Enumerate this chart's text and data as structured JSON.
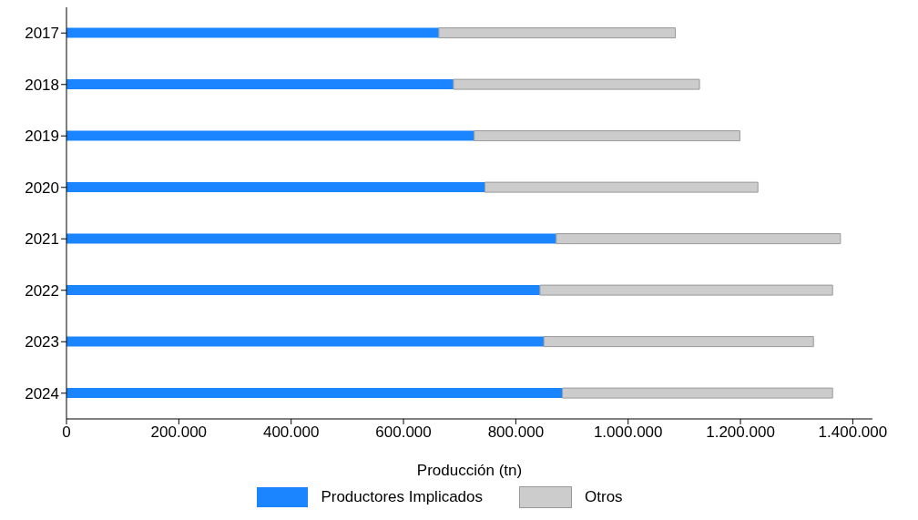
{
  "chart_data": {
    "type": "bar",
    "orientation": "horizontal",
    "stacked": true,
    "xlabel": "Producción (tn)",
    "categories": [
      "2017",
      "2018",
      "2019",
      "2020",
      "2021",
      "2022",
      "2023",
      "2024"
    ],
    "series": [
      {
        "name": "Productores Implicados",
        "color": "#1a85ff",
        "values": [
          663000,
          689000,
          726000,
          745000,
          872000,
          843000,
          850000,
          883000
        ]
      },
      {
        "name": "Otros",
        "color": "#cccccc",
        "values": [
          421000,
          438000,
          473000,
          486000,
          506000,
          521000,
          480000,
          481000
        ]
      }
    ],
    "xlim": [
      0,
      1435000
    ],
    "xticks": [
      0,
      {
        "value": 200000,
        "label": "200.000"
      },
      {
        "value": 400000,
        "label": "400.000"
      },
      {
        "value": 600000,
        "label": "600.000"
      },
      {
        "value": 800000,
        "label": "800.000"
      },
      {
        "value": 1000000,
        "label": "1.000.000"
      },
      {
        "value": 1200000,
        "label": "1.200.000"
      },
      {
        "value": 1400000,
        "label": "1.400.000"
      }
    ],
    "grid": false,
    "legend": "bottom"
  }
}
